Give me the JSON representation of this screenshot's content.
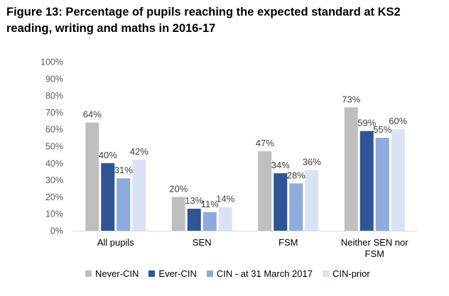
{
  "title": "Figure 13: Percentage of pupils reaching the expected standard at KS2 reading, writing and maths in 2016-17",
  "chart_data": {
    "type": "bar",
    "categories": [
      [
        "All pupils"
      ],
      [
        "SEN"
      ],
      [
        "FSM"
      ],
      [
        "Neither SEN nor",
        "FSM"
      ]
    ],
    "series": [
      {
        "name": "Never-CIN",
        "color": "#bfbfbf",
        "values": [
          64,
          20,
          47,
          73
        ]
      },
      {
        "name": "Ever-CIN",
        "color": "#2f5597",
        "values": [
          40,
          13,
          34,
          59
        ]
      },
      {
        "name": "CIN - at 31 March 2017",
        "color": "#8faadc",
        "values": [
          31,
          11,
          28,
          55
        ]
      },
      {
        "name": "CIN-prior",
        "color": "#dae3f3",
        "values": [
          42,
          14,
          36,
          60
        ]
      }
    ],
    "ylim": [
      0,
      100
    ],
    "yticks": [
      "0%",
      "10%",
      "20%",
      "30%",
      "40%",
      "50%",
      "60%",
      "70%",
      "80%",
      "90%",
      "100%"
    ],
    "value_suffix": "%",
    "grid": false,
    "legend_position": "bottom"
  }
}
